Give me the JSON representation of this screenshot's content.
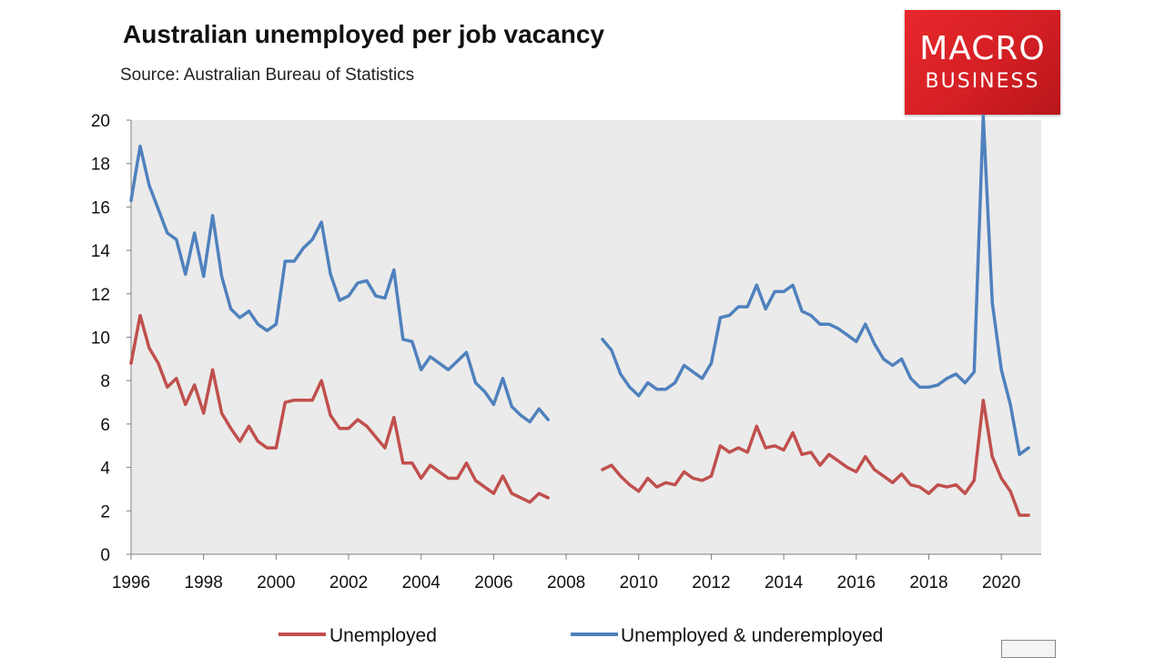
{
  "header": {
    "title": "Australian unemployed per job vacancy",
    "subtitle": "Source: Australian Bureau of Statistics"
  },
  "logo": {
    "line1": "MACRO",
    "line2": "BUSINESS"
  },
  "colors": {
    "unemployed": "#c0504d",
    "underemployed": "#4f81bd",
    "plot_bg": "#ebebeb"
  },
  "chart_data": {
    "type": "line",
    "title": "Australian unemployed per job vacancy",
    "subtitle": "Source: Australian Bureau of Statistics",
    "xlim": [
      1996,
      2021.1
    ],
    "ylim": [
      0,
      20
    ],
    "x_ticks": [
      1996,
      1998,
      2000,
      2002,
      2004,
      2006,
      2008,
      2010,
      2012,
      2014,
      2016,
      2018,
      2020
    ],
    "y_ticks": [
      0,
      2,
      4,
      6,
      8,
      10,
      12,
      14,
      16,
      18,
      20
    ],
    "grid": false,
    "legend": "bottom",
    "series": [
      {
        "name": "Unemployed",
        "segments": [
          [
            [
              1996.0,
              8.8
            ],
            [
              1996.25,
              11.0
            ],
            [
              1996.5,
              9.5
            ],
            [
              1996.75,
              8.8
            ],
            [
              1997.0,
              7.7
            ],
            [
              1997.25,
              8.1
            ],
            [
              1997.5,
              6.9
            ],
            [
              1997.75,
              7.8
            ],
            [
              1998.0,
              6.5
            ],
            [
              1998.25,
              8.5
            ],
            [
              1998.5,
              6.5
            ],
            [
              1998.75,
              5.8
            ],
            [
              1999.0,
              5.2
            ],
            [
              1999.25,
              5.9
            ],
            [
              1999.5,
              5.2
            ],
            [
              1999.75,
              4.9
            ],
            [
              2000.0,
              4.9
            ],
            [
              2000.25,
              7.0
            ],
            [
              2000.5,
              7.1
            ],
            [
              2000.75,
              7.1
            ],
            [
              2001.0,
              7.1
            ],
            [
              2001.25,
              8.0
            ],
            [
              2001.5,
              6.4
            ],
            [
              2001.75,
              5.8
            ],
            [
              2002.0,
              5.8
            ],
            [
              2002.25,
              6.2
            ],
            [
              2002.5,
              5.9
            ],
            [
              2002.75,
              5.4
            ],
            [
              2003.0,
              4.9
            ],
            [
              2003.25,
              6.3
            ],
            [
              2003.5,
              4.2
            ],
            [
              2003.75,
              4.2
            ],
            [
              2004.0,
              3.5
            ],
            [
              2004.25,
              4.1
            ],
            [
              2004.5,
              3.8
            ],
            [
              2004.75,
              3.5
            ],
            [
              2005.0,
              3.5
            ],
            [
              2005.25,
              4.2
            ],
            [
              2005.5,
              3.4
            ],
            [
              2005.75,
              3.1
            ],
            [
              2006.0,
              2.8
            ],
            [
              2006.25,
              3.6
            ],
            [
              2006.5,
              2.8
            ],
            [
              2006.75,
              2.6
            ],
            [
              2007.0,
              2.4
            ],
            [
              2007.25,
              2.8
            ],
            [
              2007.5,
              2.6
            ]
          ],
          [
            [
              2009.0,
              3.9
            ],
            [
              2009.25,
              4.1
            ],
            [
              2009.5,
              3.6
            ],
            [
              2009.75,
              3.2
            ],
            [
              2010.0,
              2.9
            ],
            [
              2010.25,
              3.5
            ],
            [
              2010.5,
              3.1
            ],
            [
              2010.75,
              3.3
            ],
            [
              2011.0,
              3.2
            ],
            [
              2011.25,
              3.8
            ],
            [
              2011.5,
              3.5
            ],
            [
              2011.75,
              3.4
            ],
            [
              2012.0,
              3.6
            ],
            [
              2012.25,
              5.0
            ],
            [
              2012.5,
              4.7
            ],
            [
              2012.75,
              4.9
            ],
            [
              2013.0,
              4.7
            ],
            [
              2013.25,
              5.9
            ],
            [
              2013.5,
              4.9
            ],
            [
              2013.75,
              5.0
            ],
            [
              2014.0,
              4.8
            ],
            [
              2014.25,
              5.6
            ],
            [
              2014.5,
              4.6
            ],
            [
              2014.75,
              4.7
            ],
            [
              2015.0,
              4.1
            ],
            [
              2015.25,
              4.6
            ],
            [
              2015.5,
              4.3
            ],
            [
              2015.75,
              4.0
            ],
            [
              2016.0,
              3.8
            ],
            [
              2016.25,
              4.5
            ],
            [
              2016.5,
              3.9
            ],
            [
              2016.75,
              3.6
            ],
            [
              2017.0,
              3.3
            ],
            [
              2017.25,
              3.7
            ],
            [
              2017.5,
              3.2
            ],
            [
              2017.75,
              3.1
            ],
            [
              2018.0,
              2.8
            ],
            [
              2018.25,
              3.2
            ],
            [
              2018.5,
              3.1
            ],
            [
              2018.75,
              3.2
            ],
            [
              2019.0,
              2.8
            ],
            [
              2019.25,
              3.4
            ],
            [
              2019.5,
              7.1
            ],
            [
              2019.75,
              4.5
            ],
            [
              2020.0,
              3.5
            ],
            [
              2020.25,
              2.9
            ],
            [
              2020.5,
              1.8
            ],
            [
              2020.75,
              1.8
            ]
          ]
        ]
      },
      {
        "name": "Unemployed & underemployed",
        "segments": [
          [
            [
              1996.0,
              16.3
            ],
            [
              1996.25,
              18.8
            ],
            [
              1996.5,
              17.0
            ],
            [
              1996.75,
              15.9
            ],
            [
              1997.0,
              14.8
            ],
            [
              1997.25,
              14.5
            ],
            [
              1997.5,
              12.9
            ],
            [
              1997.75,
              14.8
            ],
            [
              1998.0,
              12.8
            ],
            [
              1998.25,
              15.6
            ],
            [
              1998.5,
              12.8
            ],
            [
              1998.75,
              11.3
            ],
            [
              1999.0,
              10.9
            ],
            [
              1999.25,
              11.2
            ],
            [
              1999.5,
              10.6
            ],
            [
              1999.75,
              10.3
            ],
            [
              2000.0,
              10.6
            ],
            [
              2000.25,
              13.5
            ],
            [
              2000.5,
              13.5
            ],
            [
              2000.75,
              14.1
            ],
            [
              2001.0,
              14.5
            ],
            [
              2001.25,
              15.3
            ],
            [
              2001.5,
              12.9
            ],
            [
              2001.75,
              11.7
            ],
            [
              2002.0,
              11.9
            ],
            [
              2002.25,
              12.5
            ],
            [
              2002.5,
              12.6
            ],
            [
              2002.75,
              11.9
            ],
            [
              2003.0,
              11.8
            ],
            [
              2003.25,
              13.1
            ],
            [
              2003.5,
              9.9
            ],
            [
              2003.75,
              9.8
            ],
            [
              2004.0,
              8.5
            ],
            [
              2004.25,
              9.1
            ],
            [
              2004.5,
              8.8
            ],
            [
              2004.75,
              8.5
            ],
            [
              2005.0,
              8.9
            ],
            [
              2005.25,
              9.3
            ],
            [
              2005.5,
              7.9
            ],
            [
              2005.75,
              7.5
            ],
            [
              2006.0,
              6.9
            ],
            [
              2006.25,
              8.1
            ],
            [
              2006.5,
              6.8
            ],
            [
              2006.75,
              6.4
            ],
            [
              2007.0,
              6.1
            ],
            [
              2007.25,
              6.7
            ],
            [
              2007.5,
              6.2
            ]
          ],
          [
            [
              2009.0,
              9.9
            ],
            [
              2009.25,
              9.4
            ],
            [
              2009.5,
              8.3
            ],
            [
              2009.75,
              7.7
            ],
            [
              2010.0,
              7.3
            ],
            [
              2010.25,
              7.9
            ],
            [
              2010.5,
              7.6
            ],
            [
              2010.75,
              7.6
            ],
            [
              2011.0,
              7.9
            ],
            [
              2011.25,
              8.7
            ],
            [
              2011.5,
              8.4
            ],
            [
              2011.75,
              8.1
            ],
            [
              2012.0,
              8.8
            ],
            [
              2012.25,
              10.9
            ],
            [
              2012.5,
              11.0
            ],
            [
              2012.75,
              11.4
            ],
            [
              2013.0,
              11.4
            ],
            [
              2013.25,
              12.4
            ],
            [
              2013.5,
              11.3
            ],
            [
              2013.75,
              12.1
            ],
            [
              2014.0,
              12.1
            ],
            [
              2014.25,
              12.4
            ],
            [
              2014.5,
              11.2
            ],
            [
              2014.75,
              11.0
            ],
            [
              2015.0,
              10.6
            ],
            [
              2015.25,
              10.6
            ],
            [
              2015.5,
              10.4
            ],
            [
              2015.75,
              10.1
            ],
            [
              2016.0,
              9.8
            ],
            [
              2016.25,
              10.6
            ],
            [
              2016.5,
              9.7
            ],
            [
              2016.75,
              9.0
            ],
            [
              2017.0,
              8.7
            ],
            [
              2017.25,
              9.0
            ],
            [
              2017.5,
              8.1
            ],
            [
              2017.75,
              7.7
            ],
            [
              2018.0,
              7.7
            ],
            [
              2018.25,
              7.8
            ],
            [
              2018.5,
              8.1
            ],
            [
              2018.75,
              8.3
            ],
            [
              2019.0,
              7.9
            ],
            [
              2019.25,
              8.4
            ],
            [
              2019.5,
              20.2
            ],
            [
              2019.75,
              11.6
            ],
            [
              2020.0,
              8.5
            ],
            [
              2020.25,
              6.9
            ],
            [
              2020.5,
              4.6
            ],
            [
              2020.75,
              4.9
            ]
          ]
        ]
      }
    ]
  }
}
